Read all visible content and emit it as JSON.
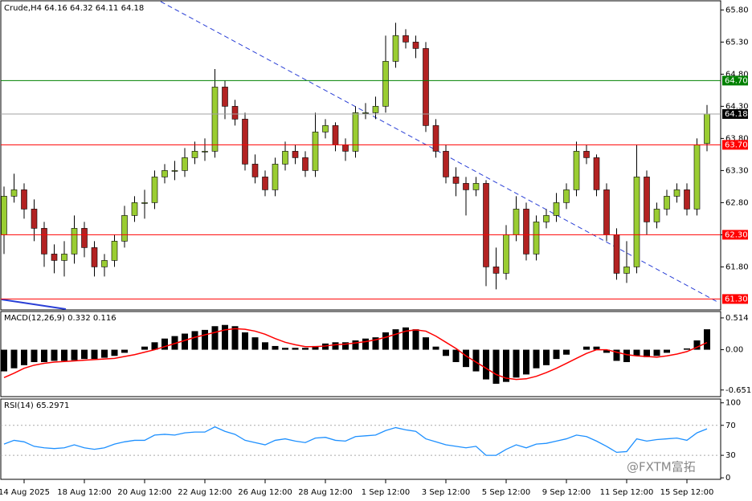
{
  "chart_data": [
    {
      "type": "candlestick",
      "title": "Crude,H4  64.16 64.32 64.11 64.18",
      "categories": [
        null,
        null,
        "14 Aug 2025",
        null,
        null,
        null,
        null,
        null,
        "18 Aug 12:00",
        null,
        null,
        null,
        null,
        null,
        "20 Aug 12:00",
        null,
        null,
        null,
        null,
        null,
        "22 Aug 12:00",
        null,
        null,
        null,
        null,
        null,
        "26 Aug 12:00",
        null,
        null,
        null,
        null,
        null,
        "28 Aug 12:00",
        null,
        null,
        null,
        null,
        null,
        "1 Sep 12:00",
        null,
        null,
        null,
        null,
        null,
        "3 Sep 12:00",
        null,
        null,
        null,
        null,
        null,
        "5 Sep 12:00",
        null,
        null,
        null,
        null,
        null,
        "9 Sep 12:00",
        null,
        null,
        null,
        null,
        null,
        "11 Sep 12:00",
        null,
        null,
        null,
        null,
        null,
        "15 Sep 12:00",
        null,
        null
      ],
      "open": [
        62.3,
        62.9,
        63.0,
        62.7,
        62.4,
        62.0,
        61.9,
        62.0,
        62.4,
        62.1,
        61.8,
        61.9,
        62.2,
        62.6,
        62.8,
        62.8,
        63.2,
        63.3,
        63.3,
        63.5,
        63.6,
        63.6,
        64.6,
        64.3,
        64.1,
        63.4,
        63.2,
        63.0,
        63.4,
        63.6,
        63.5,
        63.3,
        63.9,
        64.0,
        63.7,
        63.6,
        64.2,
        64.2,
        64.3,
        65.0,
        65.4,
        65.3,
        65.2,
        64.0,
        63.6,
        63.2,
        63.1,
        63.0,
        63.1,
        61.8,
        61.7,
        62.3,
        62.7,
        62.0,
        62.5,
        62.6,
        62.8,
        63.0,
        63.6,
        63.5,
        63.0,
        62.3,
        61.7,
        61.8,
        63.2,
        62.5,
        62.7,
        62.9,
        63.0,
        62.7,
        63.72
      ],
      "high": [
        63.05,
        63.25,
        63.1,
        62.85,
        62.5,
        62.15,
        62.2,
        62.6,
        62.5,
        62.2,
        62.0,
        62.3,
        62.75,
        62.9,
        63.0,
        63.3,
        63.4,
        63.45,
        63.65,
        63.75,
        63.8,
        64.88,
        64.7,
        64.4,
        64.2,
        63.55,
        63.3,
        63.5,
        63.75,
        63.7,
        63.6,
        64.2,
        64.1,
        64.05,
        63.8,
        64.3,
        64.35,
        64.45,
        65.4,
        65.6,
        65.5,
        65.4,
        65.3,
        64.1,
        63.7,
        63.35,
        63.2,
        63.2,
        63.15,
        62.1,
        62.45,
        62.9,
        62.8,
        62.6,
        62.7,
        62.95,
        63.1,
        63.75,
        63.7,
        63.55,
        63.1,
        62.4,
        62.2,
        63.7,
        63.3,
        62.8,
        63.0,
        63.1,
        63.1,
        63.8,
        64.32
      ],
      "low": [
        62.0,
        62.8,
        62.55,
        62.2,
        61.8,
        61.7,
        61.65,
        61.85,
        61.95,
        61.65,
        61.65,
        61.8,
        62.1,
        62.5,
        62.55,
        62.7,
        63.1,
        63.15,
        63.2,
        63.4,
        63.45,
        63.5,
        64.1,
        64.0,
        63.3,
        63.1,
        62.9,
        62.9,
        63.3,
        63.4,
        63.2,
        63.2,
        63.8,
        63.6,
        63.45,
        63.5,
        64.1,
        64.1,
        64.2,
        64.9,
        65.2,
        65.05,
        63.9,
        63.5,
        63.1,
        62.9,
        62.6,
        62.9,
        61.5,
        61.45,
        61.6,
        62.2,
        61.9,
        61.9,
        62.4,
        62.5,
        62.7,
        62.9,
        63.4,
        62.9,
        62.2,
        61.6,
        61.55,
        61.7,
        62.3,
        62.4,
        62.6,
        62.8,
        62.6,
        62.6,
        63.6
      ],
      "close": [
        62.9,
        63.0,
        62.7,
        62.4,
        62.0,
        61.9,
        62.0,
        62.4,
        62.1,
        61.8,
        61.9,
        62.2,
        62.6,
        62.8,
        62.8,
        63.2,
        63.3,
        63.3,
        63.5,
        63.6,
        63.6,
        64.6,
        64.3,
        64.1,
        63.4,
        63.2,
        63.0,
        63.4,
        63.6,
        63.5,
        63.3,
        63.9,
        64.0,
        63.7,
        63.6,
        64.2,
        64.2,
        64.3,
        65.0,
        65.4,
        65.3,
        65.2,
        64.0,
        63.6,
        63.2,
        63.1,
        63.0,
        63.1,
        61.8,
        61.7,
        62.3,
        62.7,
        62.0,
        62.5,
        62.6,
        62.8,
        63.0,
        63.6,
        63.5,
        63.0,
        62.3,
        61.7,
        61.8,
        63.2,
        62.5,
        62.7,
        62.9,
        63.0,
        62.7,
        63.7,
        64.18
      ],
      "up_color": "#9acd32",
      "down_color": "#b22222",
      "ylim": [
        61.13,
        65.93
      ],
      "yticks": [
        {
          "value": 65.8,
          "label": "65.80"
        },
        {
          "value": 65.3,
          "label": "65.30"
        },
        {
          "value": 64.8,
          "label": "64.80"
        },
        {
          "value": 64.3,
          "label": "64.30"
        },
        {
          "value": 63.8,
          "label": "63.80"
        },
        {
          "value": 63.3,
          "label": "63.30"
        },
        {
          "value": 62.8,
          "label": "62.80"
        },
        {
          "value": 62.3,
          "label": "62.30"
        },
        {
          "value": 61.8,
          "label": "61.80"
        }
      ],
      "levels": [
        {
          "value": 64.7,
          "label": "64.70",
          "color": "#008000"
        },
        {
          "value": 64.18,
          "label": "64.18",
          "color": "#a0a0a0"
        },
        {
          "value": 63.7,
          "label": "63.70",
          "color": "#ff0000"
        },
        {
          "value": 62.3,
          "label": "62.30",
          "color": "#ff0000"
        },
        {
          "value": 61.3,
          "label": "61.30",
          "color": "#ff0000"
        }
      ]
    },
    {
      "type": "macd",
      "title": "MACD(12,26,9) 0.332 0.116",
      "histogram": {
        "color": "#000000",
        "values": [
          -0.35,
          -0.3,
          -0.25,
          -0.2,
          -0.2,
          -0.18,
          -0.18,
          -0.17,
          -0.15,
          -0.15,
          -0.13,
          -0.1,
          -0.05,
          0.0,
          0.05,
          0.12,
          0.18,
          0.22,
          0.26,
          0.3,
          0.32,
          0.38,
          0.4,
          0.38,
          0.28,
          0.2,
          0.12,
          0.06,
          0.03,
          0.03,
          0.03,
          0.06,
          0.1,
          0.12,
          0.12,
          0.15,
          0.18,
          0.2,
          0.28,
          0.33,
          0.36,
          0.33,
          0.2,
          0.05,
          -0.1,
          -0.2,
          -0.28,
          -0.35,
          -0.48,
          -0.55,
          -0.52,
          -0.45,
          -0.4,
          -0.3,
          -0.25,
          -0.15,
          -0.08,
          0.0,
          0.05,
          0.05,
          -0.05,
          -0.18,
          -0.2,
          -0.1,
          -0.12,
          -0.1,
          -0.05,
          0.0,
          0.02,
          0.15,
          0.33
        ]
      },
      "signal": {
        "color": "#ff0000",
        "values": [
          -0.45,
          -0.38,
          -0.3,
          -0.25,
          -0.22,
          -0.2,
          -0.19,
          -0.18,
          -0.17,
          -0.16,
          -0.15,
          -0.14,
          -0.11,
          -0.08,
          -0.04,
          0.0,
          0.05,
          0.1,
          0.15,
          0.2,
          0.24,
          0.28,
          0.32,
          0.34,
          0.33,
          0.3,
          0.25,
          0.18,
          0.12,
          0.08,
          0.05,
          0.05,
          0.06,
          0.08,
          0.09,
          0.11,
          0.13,
          0.16,
          0.2,
          0.25,
          0.3,
          0.32,
          0.3,
          0.22,
          0.12,
          0.02,
          -0.1,
          -0.2,
          -0.3,
          -0.4,
          -0.46,
          -0.48,
          -0.47,
          -0.43,
          -0.37,
          -0.3,
          -0.22,
          -0.14,
          -0.06,
          0.0,
          0.0,
          -0.04,
          -0.08,
          -0.1,
          -0.11,
          -0.12,
          -0.1,
          -0.07,
          -0.03,
          0.04,
          0.116
        ]
      },
      "ylim": [
        -0.758,
        0.604
      ],
      "yticks": [
        0.514,
        {
          "value": 0,
          "label": "0.00"
        },
        -0.651
      ]
    },
    {
      "type": "line",
      "title": "RSI(14) 65.2971",
      "color": "#1e90ff",
      "values": [
        45,
        50,
        48,
        42,
        40,
        39,
        40,
        44,
        40,
        38,
        40,
        45,
        48,
        50,
        50,
        57,
        58,
        57,
        60,
        61,
        61,
        68,
        62,
        58,
        50,
        47,
        44,
        50,
        52,
        49,
        47,
        53,
        54,
        50,
        49,
        55,
        56,
        57,
        63,
        67,
        64,
        62,
        52,
        48,
        44,
        42,
        40,
        42,
        30,
        30,
        38,
        44,
        40,
        45,
        46,
        49,
        52,
        57,
        55,
        49,
        42,
        34,
        35,
        52,
        49,
        51,
        52,
        53,
        50,
        60,
        65.2971
      ],
      "ylim": [
        -2,
        104
      ],
      "yticks": [
        100,
        70,
        30,
        0
      ],
      "dotted_ticks": [
        70,
        30
      ]
    }
  ],
  "watermark": "@FXTM富拓"
}
